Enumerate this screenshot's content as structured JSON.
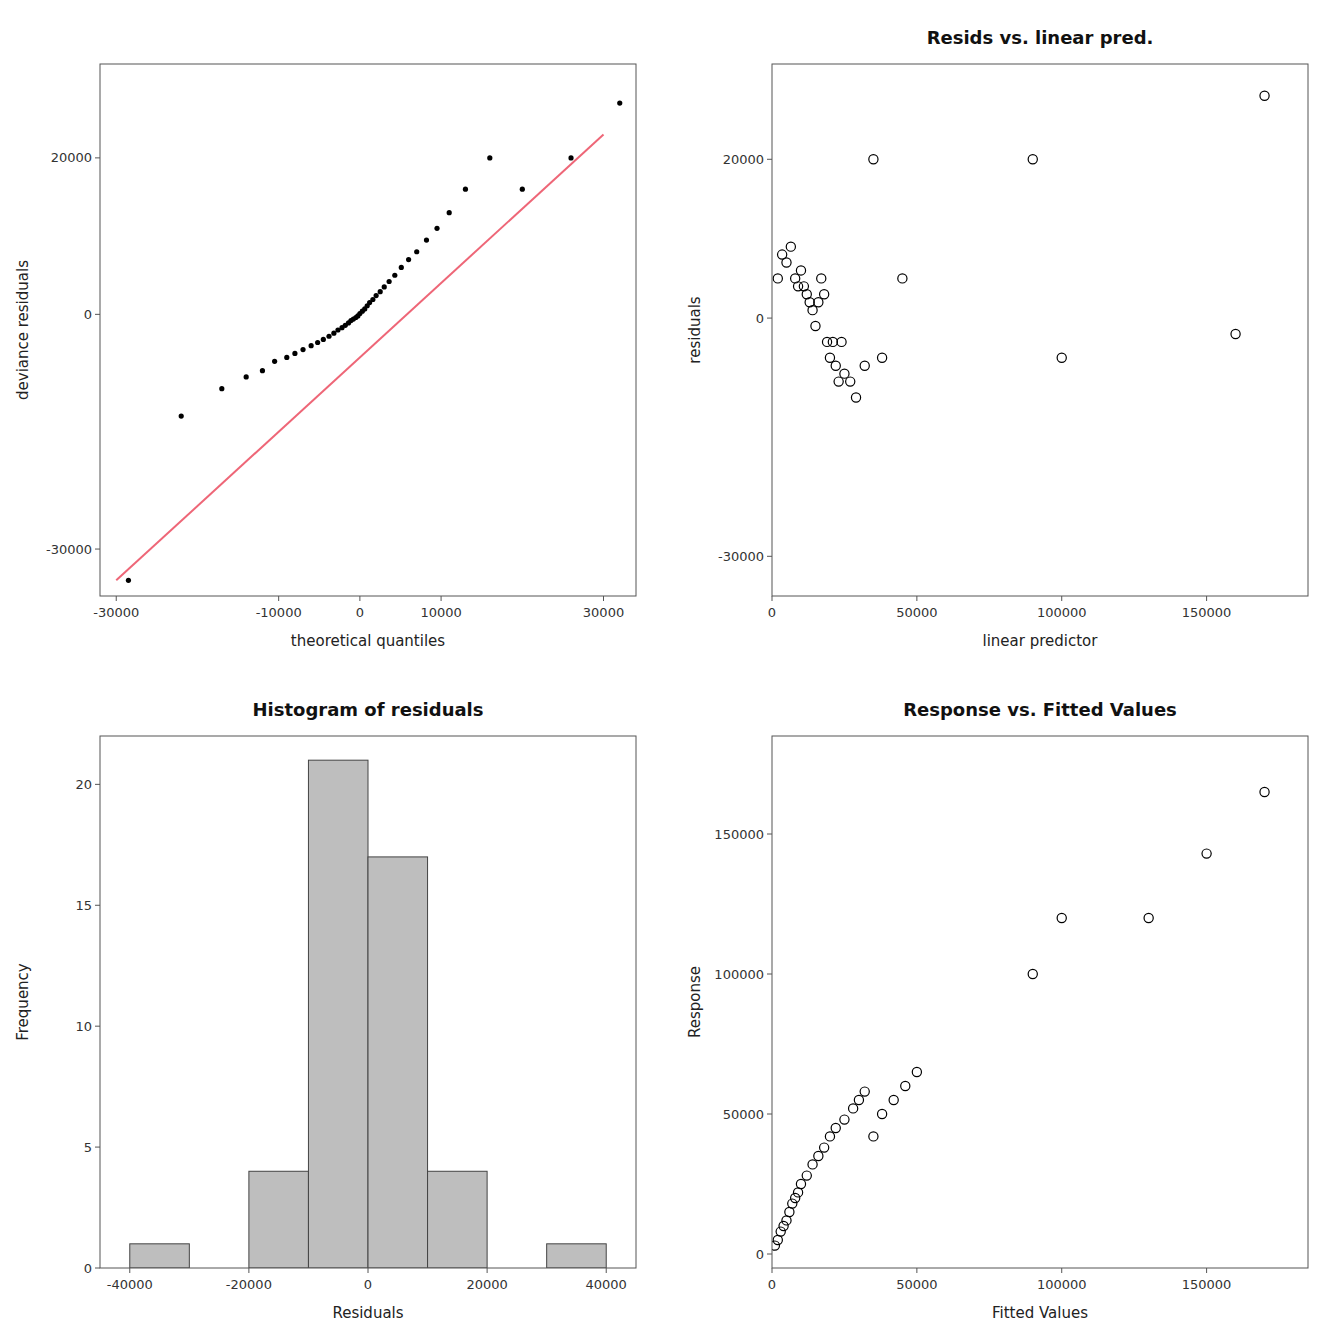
{
  "chart_data": [
    {
      "type": "scatter",
      "xlabel": "theoretical quantiles",
      "ylabel": "deviance residuals",
      "series": [
        {
          "type": "line",
          "color": "#ee6677",
          "x": [
            -30000,
            30000
          ],
          "values": [
            -34000,
            23000
          ]
        },
        {
          "type": "scatter",
          "marker": "dot",
          "color": "#000000",
          "x": [
            -28500,
            -22000,
            -17000,
            -14000,
            -12000,
            -10500,
            -9000,
            -8000,
            -7000,
            -6000,
            -5200,
            -4500,
            -3800,
            -3200,
            -2700,
            -2200,
            -1800,
            -1400,
            -1100,
            -800,
            -500,
            -250,
            0,
            300,
            600,
            900,
            1200,
            1600,
            2000,
            2500,
            3000,
            3600,
            4300,
            5100,
            6000,
            7000,
            8200,
            9500,
            11000,
            13000,
            16000,
            20000,
            26000,
            32000
          ],
          "values": [
            -34000,
            -13000,
            -9500,
            -8000,
            -7200,
            -6000,
            -5500,
            -5000,
            -4500,
            -4000,
            -3600,
            -3200,
            -2800,
            -2400,
            -2000,
            -1700,
            -1400,
            -1100,
            -800,
            -600,
            -400,
            -200,
            100,
            400,
            700,
            1100,
            1500,
            1900,
            2400,
            2900,
            3500,
            4200,
            5000,
            6000,
            7000,
            8000,
            9500,
            11000,
            13000,
            16000,
            20000,
            16000,
            20000,
            27000
          ]
        }
      ],
      "xlim": [
        -32000,
        34000
      ],
      "ylim": [
        -36000,
        32000
      ],
      "xticks": [
        -30000,
        -10000,
        0,
        10000,
        30000
      ],
      "yticks": [
        -30000,
        0,
        20000
      ],
      "grid": false
    },
    {
      "type": "scatter",
      "title": "Resids vs. linear pred.",
      "xlabel": "linear predictor",
      "ylabel": "residuals",
      "series": [
        {
          "type": "scatter",
          "marker": "open-circle",
          "color": "#000000",
          "x": [
            2000,
            3500,
            5000,
            6500,
            8000,
            9000,
            10000,
            11000,
            12000,
            13000,
            14000,
            15000,
            16000,
            17000,
            18000,
            19000,
            20000,
            21000,
            22000,
            23000,
            24000,
            25000,
            27000,
            29000,
            32000,
            35000,
            38000,
            45000,
            90000,
            100000,
            160000,
            170000
          ],
          "values": [
            5000,
            8000,
            7000,
            9000,
            5000,
            4000,
            6000,
            4000,
            3000,
            2000,
            1000,
            -1000,
            2000,
            5000,
            3000,
            -3000,
            -5000,
            -3000,
            -6000,
            -8000,
            -3000,
            -7000,
            -8000,
            -10000,
            -6000,
            20000,
            -5000,
            5000,
            20000,
            -5000,
            -2000,
            28000
          ]
        }
      ],
      "xlim": [
        0,
        185000
      ],
      "ylim": [
        -35000,
        32000
      ],
      "xticks": [
        0,
        50000,
        100000,
        150000
      ],
      "yticks": [
        -30000,
        0,
        20000
      ],
      "grid": false
    },
    {
      "type": "histogram",
      "title": "Histogram of residuals",
      "xlabel": "Residuals",
      "ylabel": "Frequency",
      "bins": [
        -40000,
        -30000,
        -20000,
        -10000,
        0,
        10000,
        20000,
        30000,
        40000
      ],
      "values": [
        1,
        0,
        4,
        21,
        17,
        4,
        0,
        1
      ],
      "color": "#bebebe",
      "xlim": [
        -45000,
        45000
      ],
      "ylim": [
        0,
        22
      ],
      "xticks": [
        -40000,
        -20000,
        0,
        20000,
        40000
      ],
      "yticks": [
        0,
        5,
        10,
        15,
        20
      ],
      "grid": false
    },
    {
      "type": "scatter",
      "title": "Response vs. Fitted Values",
      "xlabel": "Fitted Values",
      "ylabel": "Response",
      "series": [
        {
          "type": "scatter",
          "marker": "open-circle",
          "color": "#000000",
          "x": [
            1000,
            2000,
            3000,
            4000,
            5000,
            6000,
            7000,
            8000,
            9000,
            10000,
            12000,
            14000,
            16000,
            18000,
            20000,
            22000,
            25000,
            28000,
            30000,
            32000,
            35000,
            38000,
            42000,
            46000,
            50000,
            90000,
            100000,
            130000,
            150000,
            170000
          ],
          "values": [
            3000,
            5000,
            8000,
            10000,
            12000,
            15000,
            18000,
            20000,
            22000,
            25000,
            28000,
            32000,
            35000,
            38000,
            42000,
            45000,
            48000,
            52000,
            55000,
            58000,
            42000,
            50000,
            55000,
            60000,
            65000,
            100000,
            120000,
            120000,
            143000,
            165000
          ]
        }
      ],
      "xlim": [
        0,
        185000
      ],
      "ylim": [
        -5000,
        185000
      ],
      "xticks": [
        0,
        50000,
        100000,
        150000
      ],
      "yticks": [
        0,
        50000,
        100000,
        150000
      ],
      "grid": false
    }
  ]
}
